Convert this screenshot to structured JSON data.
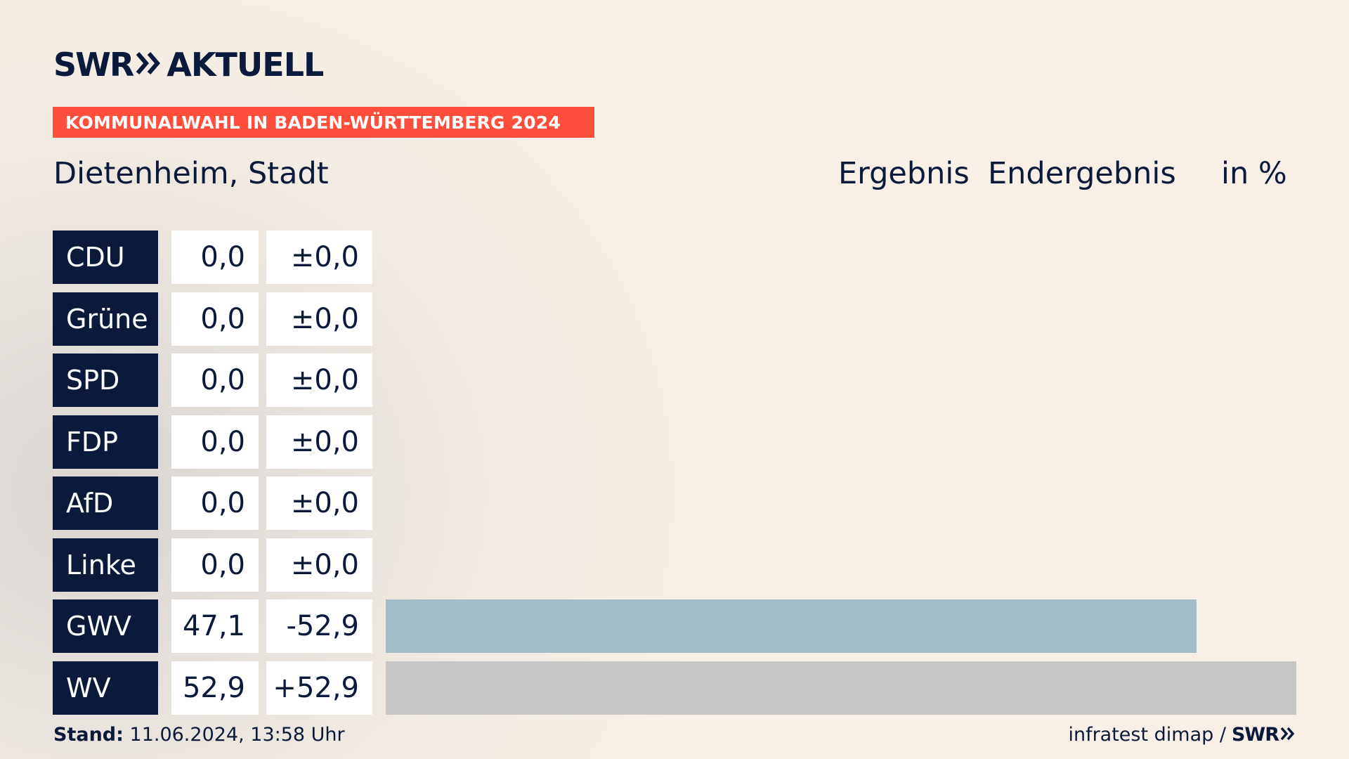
{
  "logo": {
    "brand": "SWR",
    "product": "AKTUELL"
  },
  "banner": "KOMMUNALWAHL IN BADEN-WÜRTTEMBERG 2024",
  "location": "Dietenheim, Stadt",
  "headers": {
    "result": "Ergebnis",
    "final": "Endergebnis",
    "unit": "in %"
  },
  "footer": {
    "stand_label": "Stand:",
    "stand_value": "11.06.2024, 13:58 Uhr",
    "source": "infratest dimap /",
    "source_brand": "SWR"
  },
  "colors": {
    "navy": "#0b1a3a",
    "accent": "#ff4f3c",
    "gwv": "#a2bdc8",
    "wv": "#c6c6c6",
    "default_bar": "#c6c6c6"
  },
  "chart_data": {
    "type": "bar",
    "orientation": "horizontal",
    "categories": [
      "CDU",
      "Grüne",
      "SPD",
      "FDP",
      "AfD",
      "Linke",
      "GWV",
      "WV"
    ],
    "values": [
      0.0,
      0.0,
      0.0,
      0.0,
      0.0,
      0.0,
      47.1,
      52.9
    ],
    "value_labels": [
      "0,0",
      "0,0",
      "0,0",
      "0,0",
      "0,0",
      "0,0",
      "47,1",
      "52,9"
    ],
    "differences": [
      "±0,0",
      "±0,0",
      "±0,0",
      "±0,0",
      "±0,0",
      "±0,0",
      "-52,9",
      "+52,9"
    ],
    "bar_colors": [
      "#c6c6c6",
      "#c6c6c6",
      "#c6c6c6",
      "#c6c6c6",
      "#c6c6c6",
      "#c6c6c6",
      "#a2bdc8",
      "#c6c6c6"
    ],
    "xlim": [
      0,
      52.9
    ],
    "unit": "in %"
  }
}
